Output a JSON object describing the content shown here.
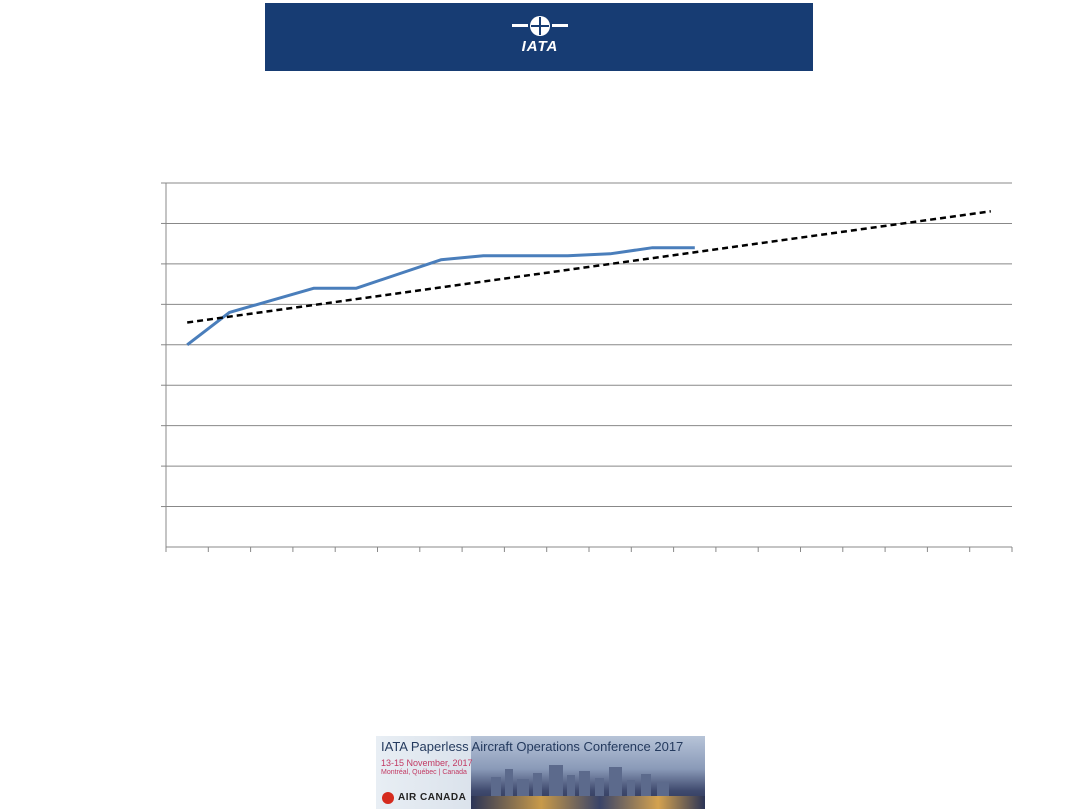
{
  "header": {
    "logo_text": "IATA",
    "bg_color": "#173c73"
  },
  "chart_data": {
    "type": "line",
    "title": "",
    "xlabel": "",
    "ylabel": "",
    "grid": true,
    "legend": "none",
    "x_categories": 20,
    "ylim": [
      0,
      9
    ],
    "series": [
      {
        "type": "line",
        "color": "#4a7ebb",
        "x": [
          1,
          2,
          3,
          4,
          5,
          6,
          7,
          8,
          9,
          10,
          11,
          12,
          13,
          14,
          15
        ],
        "values": [
          5.0,
          5.8,
          6.1,
          6.4,
          6.4,
          6.75,
          7.1,
          7.2,
          7.2,
          7.2,
          7.25,
          7.4,
          7.4,
          null,
          null
        ]
      },
      {
        "type": "linear-trend",
        "color": "#000000",
        "dash": true,
        "x": [
          1,
          20
        ],
        "values": [
          5.55,
          8.3
        ]
      }
    ]
  },
  "footer": {
    "conference_title": "IATA Paperless Aircraft Operations Conference 2017",
    "conference_date": "13-15 November, 2017",
    "conference_location": "Montréal, Québec | Canada",
    "sponsor_text": "AIR CANADA",
    "title_color": "#243a5e",
    "accent_color": "#c23a63"
  }
}
